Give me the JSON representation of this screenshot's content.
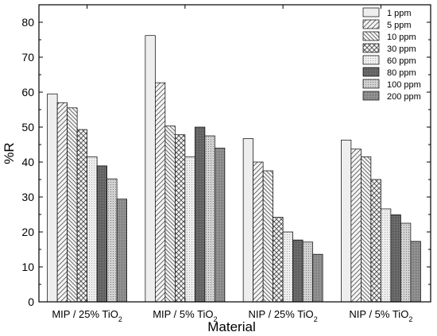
{
  "chart_data": {
    "type": "bar",
    "xlabel": "Material",
    "ylabel": "%R",
    "ylim": [
      0,
      85
    ],
    "yticks": [
      0,
      10,
      20,
      30,
      40,
      50,
      60,
      70,
      80
    ],
    "grid": false,
    "legend_position": "top-right",
    "categories": [
      {
        "main": "MIP / 25% TiO",
        "sub": "2"
      },
      {
        "main": "MIP / 5% TiO",
        "sub": "2"
      },
      {
        "main": "NIP / 25% TiO",
        "sub": "2"
      },
      {
        "main": "NIP / 5% TiO",
        "sub": "2"
      }
    ],
    "series": [
      {
        "name": "1 ppm",
        "pattern": "plain",
        "values": [
          59.5,
          76.2,
          46.7,
          46.3
        ]
      },
      {
        "name": "5 ppm",
        "pattern": "diag-up",
        "values": [
          57.0,
          62.7,
          40.0,
          43.7
        ]
      },
      {
        "name": "10 ppm",
        "pattern": "diag-down",
        "values": [
          55.5,
          50.3,
          37.5,
          41.5
        ]
      },
      {
        "name": "30 ppm",
        "pattern": "cross",
        "values": [
          49.3,
          47.8,
          24.2,
          35.0
        ]
      },
      {
        "name": "60 ppm",
        "pattern": "light-dots",
        "values": [
          41.5,
          41.5,
          20.0,
          26.6
        ]
      },
      {
        "name": "80 ppm",
        "pattern": "dark-dots",
        "values": [
          38.9,
          50.0,
          17.7,
          24.9
        ]
      },
      {
        "name": "100 ppm",
        "pattern": "medium-dots",
        "values": [
          35.2,
          47.5,
          17.1,
          22.5
        ]
      },
      {
        "name": "200 ppm",
        "pattern": "heavy-dots",
        "values": [
          29.4,
          44.0,
          13.6,
          17.3
        ]
      }
    ]
  }
}
